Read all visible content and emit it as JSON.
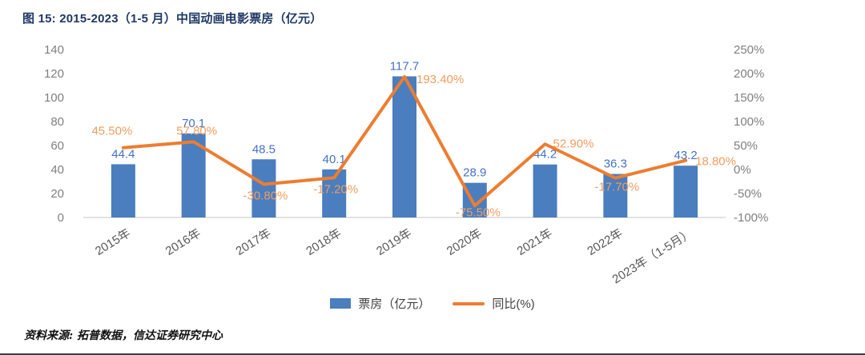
{
  "page": {
    "title": "图 15:  2015-2023（1-5 月）中国动画电影票房（亿元）",
    "source": "资料来源: 拓普数据，信达证券研究中心"
  },
  "colors": {
    "bar": "#4a7ebe",
    "bar_label": "#4472c4",
    "line": "#ed7d31",
    "line_label": "#f29c5e",
    "title": "#1f3864",
    "axis_text": "#7f7f7f",
    "category_text": "#595959",
    "axis_line": "#d9d9d9",
    "legend_text": "#404040",
    "divider": "#3a3a4c"
  },
  "chart_data": {
    "type": "bar",
    "subtype": "combo-bar-line-dual-axis",
    "title": "2015-2023（1-5 月）中国动画电影票房（亿元）",
    "categories": [
      "2015年",
      "2016年",
      "2017年",
      "2018年",
      "2019年",
      "2020年",
      "2021年",
      "2022年",
      "2023年（1-5月）"
    ],
    "series": [
      {
        "name": "票房（亿元）",
        "type": "bar",
        "axis": "left",
        "values": [
          44.4,
          70.1,
          48.5,
          40.1,
          117.7,
          28.9,
          44.2,
          36.3,
          43.2
        ],
        "labels": [
          "44.4",
          "70.1",
          "48.5",
          "40.1",
          "117.7",
          "28.9",
          "44.2",
          "36.3",
          "43.2"
        ]
      },
      {
        "name": "同比(%)",
        "type": "line",
        "axis": "right",
        "values": [
          45.5,
          57.8,
          -30.8,
          -17.2,
          193.4,
          -75.5,
          52.9,
          -17.7,
          18.8
        ],
        "labels": [
          "45.50%",
          "57.80%",
          "-30.80%",
          "-17.20%",
          "193.40%",
          "-75.50%",
          "52.90%",
          "-17.70%",
          "18.80%"
        ]
      }
    ],
    "left_axis": {
      "min": 0,
      "max": 140,
      "tick_step": 20,
      "ticks": [
        "0",
        "20",
        "40",
        "60",
        "80",
        "100",
        "120",
        "140"
      ]
    },
    "right_axis": {
      "min": -100,
      "max": 250,
      "tick_step": 50,
      "ticks": [
        "-100%",
        "-50%",
        "0%",
        "50%",
        "100%",
        "150%",
        "200%",
        "250%"
      ]
    },
    "grid": false,
    "legend_position": "bottom",
    "x_tick_rotation": -32
  }
}
